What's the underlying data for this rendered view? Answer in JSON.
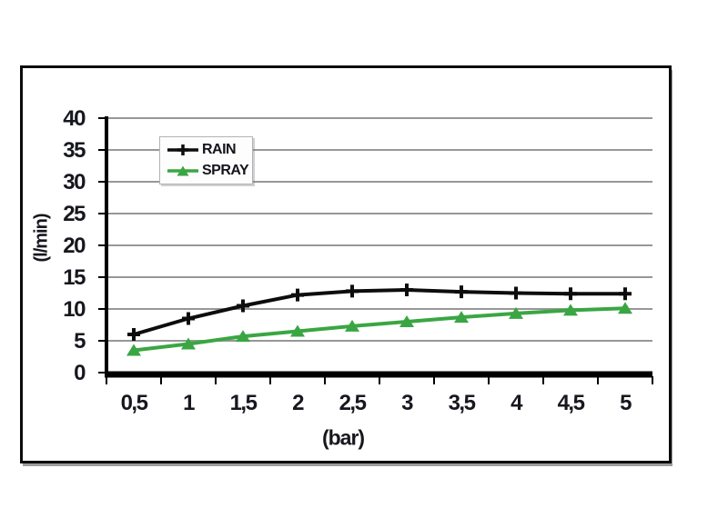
{
  "chart_data": {
    "type": "line",
    "title": "",
    "xlabel": "(bar)",
    "ylabel": "(l/min)",
    "categories": [
      "0,5",
      "1",
      "1,5",
      "2",
      "2,5",
      "3",
      "3,5",
      "4",
      "4,5",
      "5"
    ],
    "x_values": [
      0.5,
      1,
      1.5,
      2,
      2.5,
      3,
      3.5,
      4,
      4.5,
      5
    ],
    "series": [
      {
        "name": "RAIN",
        "color": "#0d0d0d",
        "marker": "plus",
        "values": [
          6,
          8.5,
          10.5,
          12.2,
          12.8,
          13,
          12.7,
          12.5,
          12.4,
          12.4
        ]
      },
      {
        "name": "SPRAY",
        "color": "#3aa643",
        "marker": "triangle",
        "values": [
          3.5,
          4.5,
          5.7,
          6.5,
          7.3,
          8,
          8.7,
          9.3,
          9.8,
          10.1
        ]
      }
    ],
    "ylim": [
      0,
      40
    ],
    "yticks": [
      0,
      5,
      10,
      15,
      20,
      25,
      30,
      35,
      40
    ],
    "grid": "horizontal",
    "legend_position": "top-left-inside",
    "gridline_color": "#979797",
    "axis_color": "#000000",
    "tick_label_color": "#17171f",
    "plot_background": "#ffffff"
  }
}
